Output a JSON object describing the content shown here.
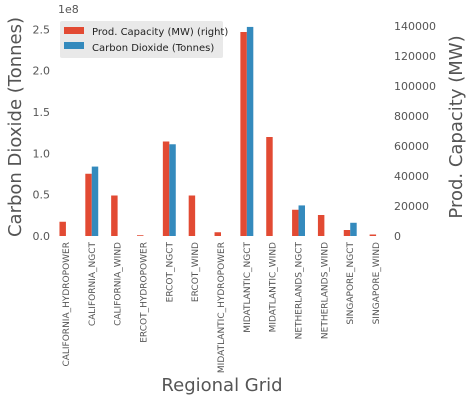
{
  "chart_data": {
    "type": "bar",
    "title": "",
    "xlabel": "Regional Grid",
    "ylabel_left": "Carbon Dioxide (Tonnes)",
    "ylabel_right": "Prod. Capacity (MW)",
    "left_axis_multiplier": "1e8",
    "categories": [
      "CALIFORNIA_HYDROPOWER",
      "CALIFORNIA_NGCT",
      "CALIFORNIA_WIND",
      "ERCOT_HYDROPOWER",
      "ERCOT_NGCT",
      "ERCOT_WIND",
      "MIDATLANTIC_HYDROPOWER",
      "MIDATLANTIC_NGCT",
      "MIDATLANTIC_WIND",
      "NETHERLANDS_NGCT",
      "NETHERLANDS_WIND",
      "SINGAPORE_NGCT",
      "SINGAPORE_WIND"
    ],
    "series": [
      {
        "name": "Prod. Capacity (MW) (right)",
        "axis": "right",
        "color": "#e24a33",
        "values": [
          9500,
          41500,
          27000,
          500,
          63000,
          27000,
          2500,
          136000,
          66000,
          17500,
          14000,
          4000,
          1000
        ]
      },
      {
        "name": "Carbon Dioxide (Tonnes)",
        "axis": "left",
        "color": "#348abd",
        "values": [
          0,
          84000000,
          0,
          0,
          111000000,
          0,
          0,
          253000000,
          0,
          37000000,
          0,
          16000000,
          0
        ]
      }
    ],
    "ylim_left": [
      0,
      265000000
    ],
    "ylim_right": [
      0,
      146000
    ],
    "yticks_left": [
      0,
      50000000,
      100000000,
      150000000,
      200000000,
      250000000
    ],
    "yticks_left_labels": [
      "0.0",
      "0.5",
      "1.0",
      "1.5",
      "2.0",
      "2.5"
    ],
    "yticks_right": [
      0,
      20000,
      40000,
      60000,
      80000,
      100000,
      120000,
      140000
    ],
    "yticks_right_labels": [
      "0",
      "20000",
      "40000",
      "60000",
      "80000",
      "100000",
      "120000",
      "140000"
    ],
    "legend_position": "top-left",
    "grid": false
  }
}
